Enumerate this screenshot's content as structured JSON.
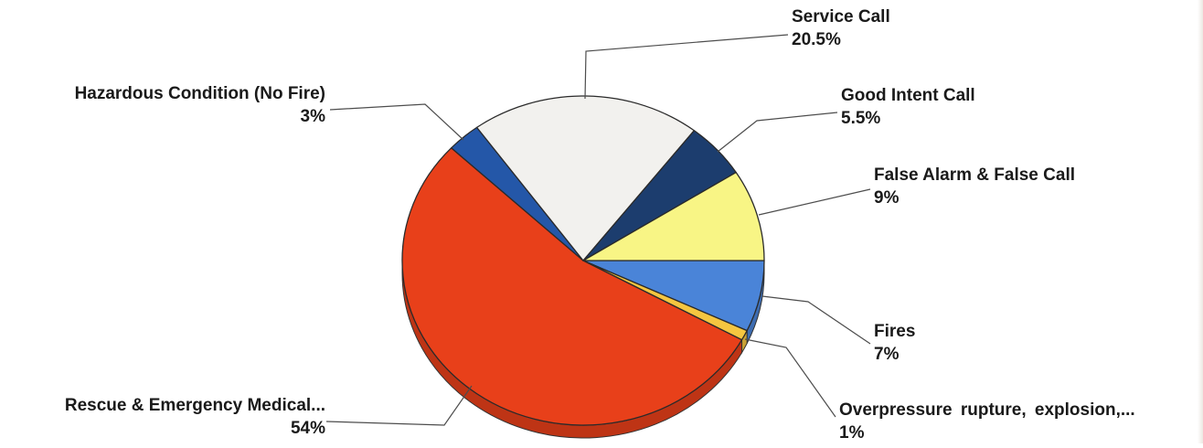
{
  "chart_data": {
    "type": "pie",
    "title": "",
    "slices": [
      {
        "label": "Fires",
        "value": 7,
        "value_label": "7%",
        "color": "#4a84d8"
      },
      {
        "label": "Overpressure rupture, explosion,...",
        "value": 1,
        "value_label": "1%",
        "color": "#f5c640"
      },
      {
        "label": "Rescue & Emergency Medical...",
        "value": 54,
        "value_label": "54%",
        "color": "#e8401a"
      },
      {
        "label": "Hazardous Condition (No Fire)",
        "value": 3,
        "value_label": "3%",
        "color": "#2457a8"
      },
      {
        "label": "Service Call",
        "value": 20.5,
        "value_label": "20.5%",
        "color": "#f2f1ee"
      },
      {
        "label": "Good Intent Call",
        "value": 5.5,
        "value_label": "5.5%",
        "color": "#1c3d6e"
      },
      {
        "label": "False Alarm & False Call",
        "value": 9,
        "value_label": "9%",
        "color": "#f8f585"
      }
    ],
    "start_angle": "3 o'clock",
    "direction": "clockwise",
    "style": "3d-tilted"
  }
}
